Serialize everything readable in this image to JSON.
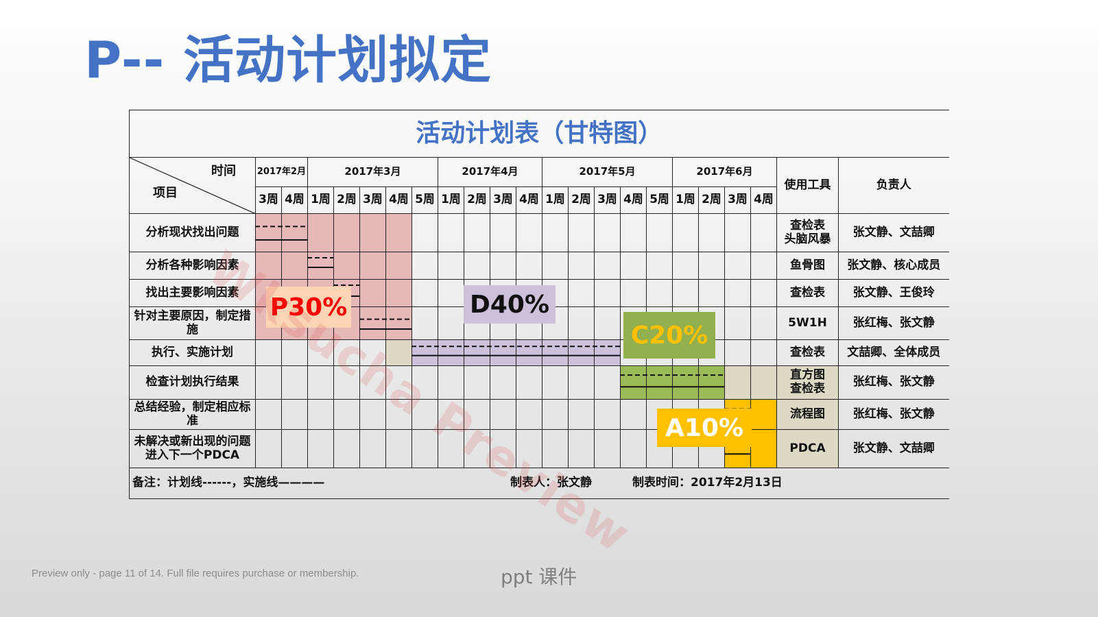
{
  "slide_title": "P-- 活动计划拟定",
  "table": {
    "title": "活动计划表（甘特图）",
    "corner": {
      "time_label": "时间",
      "item_label": "项目"
    },
    "months": [
      {
        "label": "2017年2月",
        "span": 2
      },
      {
        "label": "2017年3月",
        "span": 5
      },
      {
        "label": "2017年4月",
        "span": 4
      },
      {
        "label": "2017年5月",
        "span": 5
      },
      {
        "label": "2017年6月",
        "span": 4
      }
    ],
    "weeks": [
      "3周",
      "4周",
      "1周",
      "2周",
      "3周",
      "4周",
      "5周",
      "1周",
      "2周",
      "3周",
      "4周",
      "1周",
      "2周",
      "3周",
      "4周",
      "5周",
      "1周",
      "2周",
      "3周",
      "4周"
    ],
    "tools_header": "使用工具",
    "owner_header": "负责人",
    "rows": [
      {
        "project": "分析现状找出问题",
        "tool": "查检表\n头脑风暴",
        "owner": "张文静、文喆卿",
        "phase": "p",
        "filled": [
          0,
          1,
          2,
          3,
          4,
          5
        ]
      },
      {
        "project": "分析各种影响因素",
        "tool": "鱼骨图",
        "owner": "张文静、核心成员",
        "phase": "p",
        "filled": [
          0,
          1,
          2,
          3,
          4,
          5
        ]
      },
      {
        "project": "找出主要影响因素",
        "tool": "查检表",
        "owner": "张文静、王俊玲",
        "phase": "p",
        "filled": [
          0,
          1,
          2,
          3,
          4,
          5
        ]
      },
      {
        "project": "针对主要原因，制定措施",
        "tool": "5W1H",
        "owner": "张红梅、张文静",
        "phase": "p",
        "filled": [
          0,
          1,
          2,
          3,
          4,
          5
        ]
      },
      {
        "project": "执行、实施计划",
        "tool": "查检表",
        "owner": "文喆卿、全体成员",
        "phase": "d",
        "filled": [
          5,
          6,
          7,
          8,
          9,
          10,
          11,
          12,
          13
        ]
      },
      {
        "project": "检查计划执行结果",
        "tool": "直方图\n查检表",
        "owner": "张红梅、张文静",
        "phase": "c",
        "filled": [
          14,
          15,
          16,
          17,
          18,
          19
        ]
      },
      {
        "project": "总结经验，制定相应标准",
        "tool": "流程图",
        "owner": "张红梅、张文静",
        "phase": "a",
        "filled": [
          18,
          19
        ]
      },
      {
        "project": "未解决或新出现的问题进入下一个PDCA",
        "tool": "PDCA",
        "owner": "张文静、文喆卿",
        "phase": "a",
        "filled": [
          18,
          19
        ]
      }
    ],
    "footer": {
      "note": "备注：计划线------，实施线————",
      "maker": "制表人：张文静",
      "date": "制表时间：2017年2月13日"
    }
  },
  "phases": {
    "p": {
      "label": "P30%",
      "color": "#ff0000"
    },
    "d": {
      "label": "D40%",
      "color": "#111111"
    },
    "c": {
      "label": "C20%",
      "color": "#ffc000"
    },
    "a": {
      "label": "A10%",
      "color": "#ffffff"
    }
  },
  "watermark": "Wksucha Preview",
  "preview_note": "Preview only - page 11 of 14. Full file requires purchase or membership.",
  "site_label": "ppt 课件"
}
